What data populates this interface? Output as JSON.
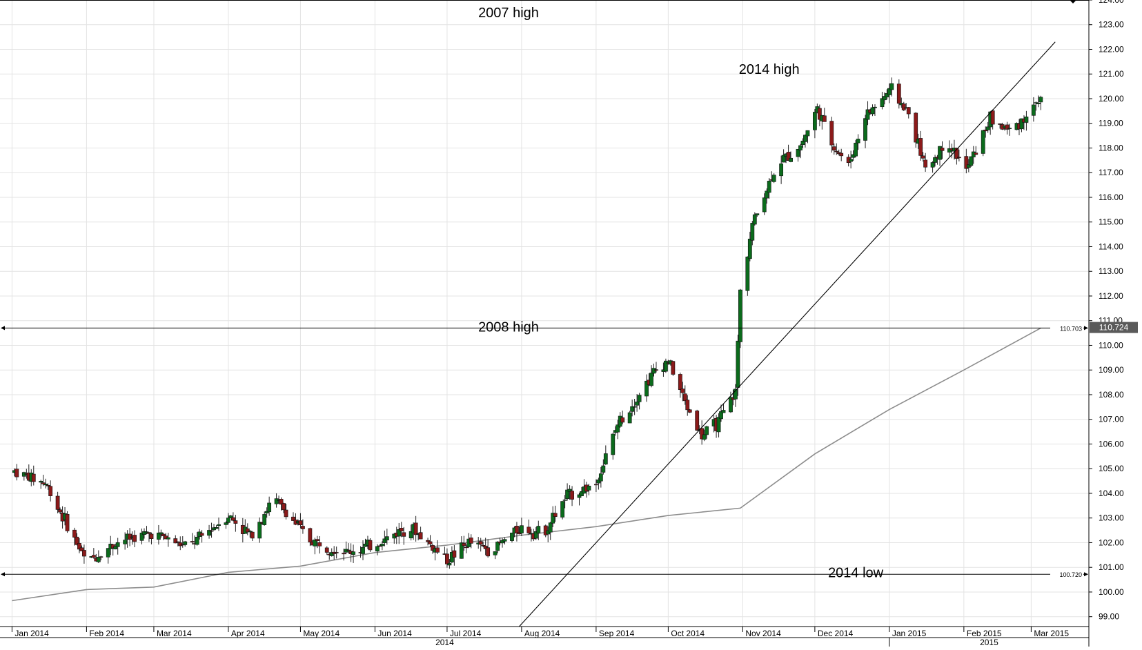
{
  "chart_data": {
    "type": "candlestick",
    "ylim": [
      98.6,
      124.0
    ],
    "y_ticks": [
      "99.00",
      "100.00",
      "101.00",
      "102.00",
      "103.00",
      "104.00",
      "105.00",
      "106.00",
      "107.00",
      "108.00",
      "109.00",
      "110.00",
      "111.00",
      "112.00",
      "113.00",
      "114.00",
      "115.00",
      "116.00",
      "117.00",
      "118.00",
      "119.00",
      "120.00",
      "121.00",
      "122.00",
      "123.00",
      "124.00"
    ],
    "x_ticks": [
      "Jan 2014",
      "Feb 2014",
      "Mar 2014",
      "Apr 2014",
      "May 2014",
      "Jun 2014",
      "Jul 2014",
      "Aug 2014",
      "Sep 2014",
      "Oct 2014",
      "Nov 2014",
      "Dec 2014",
      "Jan 2015",
      "Feb 2015",
      "Mar 2015"
    ],
    "year_labels": [
      "2014",
      "2015"
    ],
    "current_price": "110.724",
    "annotations": [
      {
        "text": "2007 high",
        "y": 123.5
      },
      {
        "text": "2014 high",
        "y": 121.2
      },
      {
        "text": "2008 high",
        "y": 110.75
      },
      {
        "text": "2014 low",
        "y": 100.8
      }
    ],
    "horizontal_lines": [
      {
        "label": "110.703",
        "y": 110.703
      },
      {
        "label": "100.720",
        "y": 100.72
      }
    ],
    "trendline": {
      "start": [
        "2014-07-31",
        98.6
      ],
      "end": [
        "2015-03-11",
        122.3
      ]
    },
    "moving_average": {
      "x": [
        "2014-01-01",
        "2014-02-01",
        "2014-03-01",
        "2014-04-01",
        "2014-05-01",
        "2014-06-01",
        "2014-07-01",
        "2014-08-01",
        "2014-09-01",
        "2014-10-01",
        "2014-10-31",
        "2014-12-01",
        "2015-01-01",
        "2015-02-01",
        "2015-03-05"
      ],
      "y": [
        99.65,
        100.1,
        100.2,
        100.8,
        101.05,
        101.6,
        101.9,
        102.3,
        102.65,
        103.1,
        103.4,
        105.6,
        107.4,
        109.0,
        110.7
      ]
    },
    "ohlc_key_points": {
      "x": [
        "2014-01-02",
        "2014-01-15",
        "2014-02-01",
        "2014-02-15",
        "2014-03-01",
        "2014-03-15",
        "2014-04-01",
        "2014-04-10",
        "2014-04-20",
        "2014-05-05",
        "2014-05-20",
        "2014-06-01",
        "2014-06-15",
        "2014-07-01",
        "2014-07-10",
        "2014-07-20",
        "2014-07-31",
        "2014-08-10",
        "2014-08-20",
        "2014-09-01",
        "2014-09-10",
        "2014-09-25",
        "2014-10-01",
        "2014-10-08",
        "2014-10-15",
        "2014-10-22",
        "2014-10-29",
        "2014-10-31",
        "2014-11-05",
        "2014-11-15",
        "2014-11-25",
        "2014-12-02",
        "2014-12-08",
        "2014-12-15",
        "2014-12-22",
        "2015-01-02",
        "2015-01-10",
        "2015-01-16",
        "2015-01-25",
        "2015-02-02",
        "2015-02-12",
        "2015-02-20",
        "2015-03-01",
        "2015-03-05"
      ],
      "y": [
        104.9,
        104.4,
        101.2,
        102.1,
        102.4,
        101.8,
        103.1,
        102.3,
        103.8,
        102.1,
        101.6,
        101.9,
        102.7,
        101.3,
        102.0,
        101.7,
        102.6,
        102.4,
        103.9,
        104.4,
        106.8,
        108.9,
        109.4,
        107.7,
        106.3,
        106.9,
        108.1,
        112.2,
        114.9,
        117.3,
        118.1,
        119.6,
        118.2,
        117.3,
        119.3,
        120.4,
        119.2,
        117.1,
        118.3,
        117.1,
        119.2,
        118.7,
        119.5,
        120.1
      ]
    }
  }
}
